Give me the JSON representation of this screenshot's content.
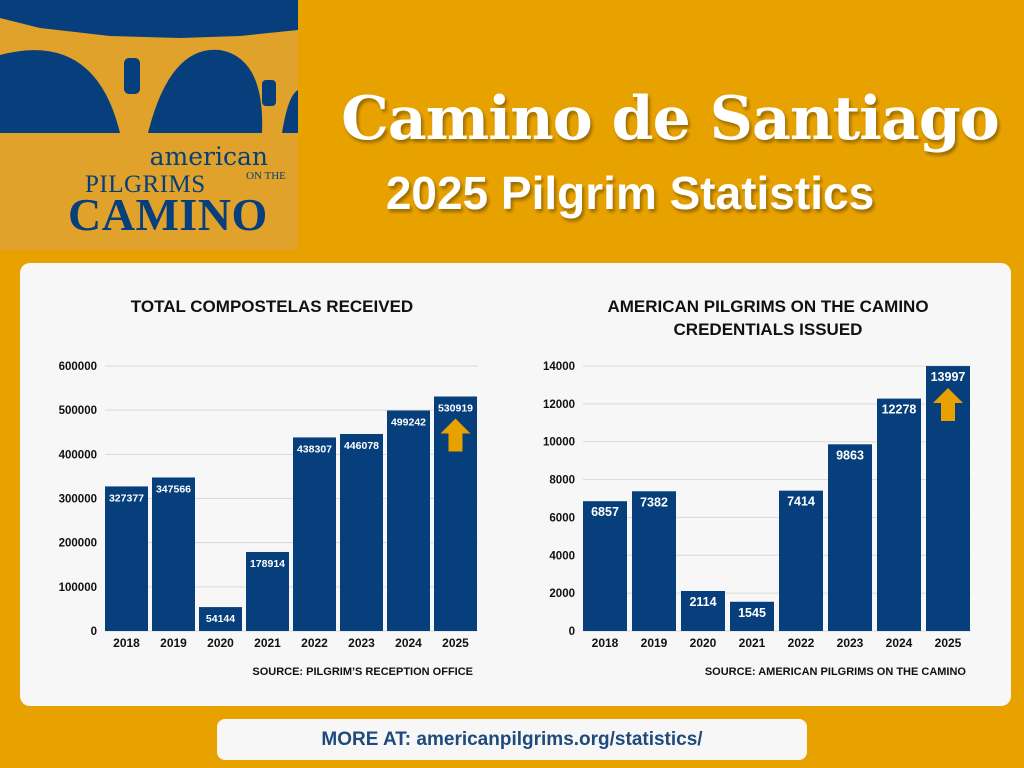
{
  "header": {
    "logo": {
      "line1": "american",
      "line2": "PILGRIMS",
      "line2b": "ON THE",
      "line3": "CAMINO"
    },
    "title": "Camino de Santiago",
    "subtitle": "2025 Pilgrim Statistics"
  },
  "colors": {
    "background": "#E8A200",
    "bar": "#063F7C",
    "arrow": "#E8A200",
    "panel": "#F7F7F7"
  },
  "chart_data": [
    {
      "type": "bar",
      "title": "TOTAL COMPOSTELAS RECEIVED",
      "categories": [
        "2018",
        "2019",
        "2020",
        "2021",
        "2022",
        "2023",
        "2024",
        "2025"
      ],
      "values": [
        327377,
        347566,
        54144,
        178914,
        438307,
        446078,
        499242,
        530919
      ],
      "yticks": [
        "0",
        "100000",
        "200000",
        "300000",
        "400000",
        "500000",
        "600000"
      ],
      "ylim": [
        0,
        600000
      ],
      "grid": true,
      "source": "SOURCE: PILGRIM’S RECEPTION OFFICE",
      "up_arrow_on": "2025"
    },
    {
      "type": "bar",
      "title": "AMERICAN PILGRIMS ON THE CAMINO\nCREDENTIALS ISSUED",
      "categories": [
        "2018",
        "2019",
        "2020",
        "2021",
        "2022",
        "2023",
        "2024",
        "2025"
      ],
      "values": [
        6857,
        7382,
        2114,
        1545,
        7414,
        9863,
        12278,
        13997
      ],
      "yticks": [
        "0",
        "2000",
        "4000",
        "6000",
        "8000",
        "10000",
        "12000",
        "14000"
      ],
      "ylim": [
        0,
        14000
      ],
      "grid": true,
      "source": "SOURCE: AMERICAN PILGRIMS ON THE CAMINO",
      "up_arrow_on": "2025"
    }
  ],
  "footer": {
    "text": "MORE AT: americanpilgrims.org/statistics/"
  }
}
